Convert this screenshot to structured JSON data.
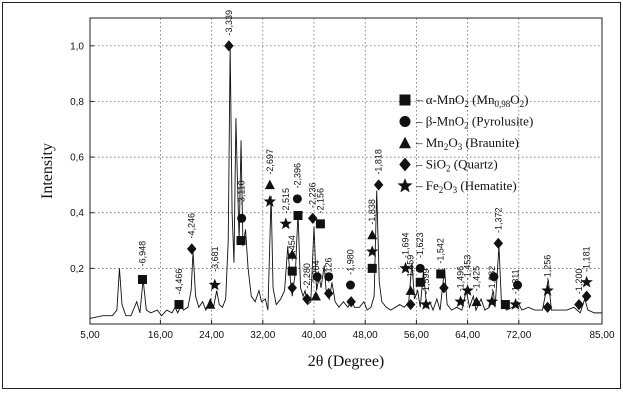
{
  "chart_data": {
    "type": "line",
    "title": "",
    "xlabel": "2θ (Degree)",
    "ylabel": "Intensity",
    "xlim": [
      5,
      85
    ],
    "ylim": [
      0,
      1.1
    ],
    "grid": true,
    "legend_position": "right",
    "x_ticks": [
      {
        "value": 5,
        "label": "5,00"
      },
      {
        "value": 16,
        "label": "16,00"
      },
      {
        "value": 24,
        "label": "24,00"
      },
      {
        "value": 32,
        "label": "32,00"
      },
      {
        "value": 40,
        "label": "40,00"
      },
      {
        "value": 48,
        "label": "48,00"
      },
      {
        "value": 56,
        "label": "56,00"
      },
      {
        "value": 64,
        "label": "64,00"
      },
      {
        "value": 72,
        "label": "72,00"
      },
      {
        "value": 85,
        "label": "85,00"
      }
    ],
    "y_ticks": [
      {
        "value": 0.2,
        "label": "0,2"
      },
      {
        "value": 0.4,
        "label": "0,4"
      },
      {
        "value": 0.6,
        "label": "0,6"
      },
      {
        "value": 0.8,
        "label": "0,8"
      },
      {
        "value": 1.0,
        "label": "1,0"
      }
    ],
    "legend": [
      {
        "marker": "square",
        "prefix": "– α-MnO",
        "sub1": "2",
        "mid": " (Mn",
        "sub2": "0,98",
        "mid2": "O",
        "sub3": "2",
        "suffix": ")"
      },
      {
        "marker": "circle",
        "prefix": "– β-MnO",
        "sub1": "2",
        "mid": " (Pyrolusite)",
        "sub2": "",
        "mid2": "",
        "sub3": "",
        "suffix": ""
      },
      {
        "marker": "triangle",
        "prefix": "– Mn",
        "sub1": "2",
        "mid": "O",
        "sub2": "3",
        "mid2": " (Braunite)",
        "sub3": "",
        "suffix": ""
      },
      {
        "marker": "diamond",
        "prefix": "– SiO",
        "sub1": "2",
        "mid": "  (Quartz)",
        "sub2": "",
        "mid2": "",
        "sub3": "",
        "suffix": ""
      },
      {
        "marker": "star",
        "prefix": "– Fe",
        "sub1": "2",
        "mid": "O",
        "sub2": "3",
        "mid2": " (Hematite)",
        "sub3": "",
        "suffix": ""
      }
    ],
    "pattern": [
      [
        5,
        0.02
      ],
      [
        7,
        0.03
      ],
      [
        8.5,
        0.03
      ],
      [
        9.2,
        0.05
      ],
      [
        9.6,
        0.2
      ],
      [
        10.0,
        0.07
      ],
      [
        10.6,
        0.03
      ],
      [
        11.4,
        0.03
      ],
      [
        12.3,
        0.08
      ],
      [
        12.8,
        0.04
      ],
      [
        13.3,
        0.16
      ],
      [
        13.8,
        0.05
      ],
      [
        14.5,
        0.04
      ],
      [
        15.5,
        0.05
      ],
      [
        16.2,
        0.03
      ],
      [
        17.0,
        0.05
      ],
      [
        17.8,
        0.04
      ],
      [
        18.3,
        0.06
      ],
      [
        18.7,
        0.04
      ],
      [
        19.3,
        0.07
      ],
      [
        19.6,
        0.05
      ],
      [
        20.3,
        0.06
      ],
      [
        20.8,
        0.12
      ],
      [
        21.1,
        0.26
      ],
      [
        21.5,
        0.1
      ],
      [
        22.0,
        0.06
      ],
      [
        22.6,
        0.08
      ],
      [
        23.1,
        0.05
      ],
      [
        23.8,
        0.09
      ],
      [
        24.3,
        0.06
      ],
      [
        24.8,
        0.12
      ],
      [
        25.2,
        0.07
      ],
      [
        25.7,
        0.06
      ],
      [
        26.2,
        0.09
      ],
      [
        26.6,
        0.3
      ],
      [
        26.9,
        1.0
      ],
      [
        27.2,
        0.4
      ],
      [
        27.5,
        0.22
      ],
      [
        27.8,
        0.74
      ],
      [
        28.0,
        0.55
      ],
      [
        28.3,
        0.3
      ],
      [
        28.6,
        0.66
      ],
      [
        28.9,
        0.28
      ],
      [
        29.3,
        0.34
      ],
      [
        29.7,
        0.2
      ],
      [
        30.2,
        0.1
      ],
      [
        30.8,
        0.08
      ],
      [
        31.4,
        0.12
      ],
      [
        31.8,
        0.08
      ],
      [
        32.4,
        0.09
      ],
      [
        32.8,
        0.05
      ],
      [
        33.3,
        0.46
      ],
      [
        33.6,
        0.13
      ],
      [
        34.1,
        0.07
      ],
      [
        34.8,
        0.09
      ],
      [
        35.4,
        0.12
      ],
      [
        35.9,
        0.28
      ],
      [
        36.3,
        0.16
      ],
      [
        36.6,
        0.1
      ],
      [
        37.1,
        0.19
      ],
      [
        37.5,
        0.4
      ],
      [
        37.9,
        0.13
      ],
      [
        38.3,
        0.1
      ],
      [
        38.6,
        0.12
      ],
      [
        39.0,
        0.07
      ],
      [
        39.5,
        0.08
      ],
      [
        40.0,
        0.35
      ],
      [
        40.4,
        0.12
      ],
      [
        40.8,
        0.17
      ],
      [
        41.1,
        0.13
      ],
      [
        41.6,
        0.21
      ],
      [
        41.9,
        0.12
      ],
      [
        42.4,
        0.09
      ],
      [
        42.8,
        0.15
      ],
      [
        43.3,
        0.08
      ],
      [
        43.9,
        0.06
      ],
      [
        44.6,
        0.08
      ],
      [
        45.3,
        0.06
      ],
      [
        45.9,
        0.09
      ],
      [
        46.3,
        0.06
      ],
      [
        47.1,
        0.06
      ],
      [
        47.8,
        0.08
      ],
      [
        48.3,
        0.05
      ],
      [
        48.9,
        0.06
      ],
      [
        49.4,
        0.1
      ],
      [
        49.8,
        0.48
      ],
      [
        50.2,
        0.15
      ],
      [
        50.6,
        0.08
      ],
      [
        51.3,
        0.06
      ],
      [
        52.0,
        0.05
      ],
      [
        52.7,
        0.06
      ],
      [
        53.4,
        0.07
      ],
      [
        54.1,
        0.06
      ],
      [
        54.8,
        0.08
      ],
      [
        55.3,
        0.22
      ],
      [
        55.7,
        0.09
      ],
      [
        56.2,
        0.12
      ],
      [
        56.6,
        0.06
      ],
      [
        57.1,
        0.19
      ],
      [
        57.6,
        0.06
      ],
      [
        58.1,
        0.08
      ],
      [
        58.6,
        0.05
      ],
      [
        59.2,
        0.09
      ],
      [
        59.7,
        0.05
      ],
      [
        60.4,
        0.2
      ],
      [
        60.8,
        0.07
      ],
      [
        61.5,
        0.05
      ],
      [
        62.3,
        0.06
      ],
      [
        63.1,
        0.05
      ],
      [
        63.8,
        0.12
      ],
      [
        64.3,
        0.06
      ],
      [
        64.9,
        0.1
      ],
      [
        65.3,
        0.05
      ],
      [
        66.1,
        0.09
      ],
      [
        66.7,
        0.05
      ],
      [
        67.4,
        0.06
      ],
      [
        68.0,
        0.12
      ],
      [
        68.3,
        0.06
      ],
      [
        68.9,
        0.28
      ],
      [
        69.3,
        0.07
      ],
      [
        70.1,
        0.05
      ],
      [
        71.0,
        0.06
      ],
      [
        71.8,
        0.08
      ],
      [
        72.5,
        0.05
      ],
      [
        73.5,
        0.06
      ],
      [
        74.5,
        0.05
      ],
      [
        75.7,
        0.05
      ],
      [
        76.6,
        0.16
      ],
      [
        77.1,
        0.05
      ],
      [
        78.3,
        0.05
      ],
      [
        79.5,
        0.05
      ],
      [
        80.6,
        0.06
      ],
      [
        81.6,
        0.04
      ],
      [
        82.3,
        0.09
      ],
      [
        82.8,
        0.05
      ],
      [
        83.8,
        0.04
      ],
      [
        85,
        0.04
      ]
    ],
    "annotations": [
      {
        "x": 13.2,
        "y": 0.16,
        "marker": "square",
        "label": "6,948",
        "ly": 0.2
      },
      {
        "x": 18.9,
        "y": 0.07,
        "marker": "square",
        "label": "4,466",
        "ly": 0.1
      },
      {
        "x": 20.9,
        "y": 0.27,
        "marker": "diamond",
        "label": "4,246",
        "ly": 0.3
      },
      {
        "x": 23.8,
        "y": 0.07,
        "marker": "triangle",
        "label": "",
        "ly": 0.1
      },
      {
        "x": 24.5,
        "y": 0.14,
        "marker": "star",
        "label": "3,681",
        "ly": 0.18
      },
      {
        "x": 26.7,
        "y": 1.0,
        "marker": "diamond",
        "label": "3,339",
        "ly": 1.03
      },
      {
        "x": 28.7,
        "y": 0.38,
        "marker": "circle",
        "label": "3,110",
        "ly": 0.42
      },
      {
        "x": 28.6,
        "y": 0.3,
        "marker": "square",
        "label": "",
        "ly": 0.3
      },
      {
        "x": 33.1,
        "y": 0.5,
        "marker": "triangle",
        "label": "2,697",
        "ly": 0.53
      },
      {
        "x": 33.1,
        "y": 0.44,
        "marker": "star",
        "label": "",
        "ly": 0.44
      },
      {
        "x": 35.6,
        "y": 0.36,
        "marker": "star",
        "label": "2,515",
        "ly": 0.39
      },
      {
        "x": 36.6,
        "y": 0.19,
        "marker": "square",
        "label": "2,454",
        "ly": 0.22
      },
      {
        "x": 36.6,
        "y": 0.25,
        "marker": "triangle",
        "label": "",
        "ly": 0.25
      },
      {
        "x": 36.6,
        "y": 0.13,
        "marker": "diamond",
        "label": "",
        "ly": 0.13
      },
      {
        "x": 37.4,
        "y": 0.45,
        "marker": "circle",
        "label": "2,396",
        "ly": 0.48
      },
      {
        "x": 37.5,
        "y": 0.39,
        "marker": "square",
        "label": "",
        "ly": 0.39
      },
      {
        "x": 38.9,
        "y": 0.09,
        "marker": "diamond",
        "label": "2,280",
        "ly": 0.12
      },
      {
        "x": 39.8,
        "y": 0.38,
        "marker": "diamond",
        "label": "2,236",
        "ly": 0.41
      },
      {
        "x": 41.0,
        "y": 0.36,
        "marker": "square",
        "label": "2,156",
        "ly": 0.39
      },
      {
        "x": 40.3,
        "y": 0.1,
        "marker": "triangle",
        "label": "2,204",
        "ly": 0.13
      },
      {
        "x": 40.5,
        "y": 0.17,
        "marker": "circle",
        "label": "",
        "ly": 0.17
      },
      {
        "x": 42.3,
        "y": 0.17,
        "marker": "circle",
        "label": "",
        "ly": 0.17
      },
      {
        "x": 42.3,
        "y": 0.11,
        "marker": "diamond",
        "label": "2,126",
        "ly": 0.14
      },
      {
        "x": 45.7,
        "y": 0.14,
        "marker": "circle",
        "label": "1,980",
        "ly": 0.17
      },
      {
        "x": 45.8,
        "y": 0.08,
        "marker": "diamond",
        "label": "",
        "ly": 0.08
      },
      {
        "x": 49.1,
        "y": 0.32,
        "marker": "triangle",
        "label": "1,838",
        "ly": 0.35
      },
      {
        "x": 49.1,
        "y": 0.26,
        "marker": "star",
        "label": "",
        "ly": 0.26
      },
      {
        "x": 49.1,
        "y": 0.2,
        "marker": "square",
        "label": "",
        "ly": 0.2
      },
      {
        "x": 50.1,
        "y": 0.5,
        "marker": "diamond",
        "label": "1,818",
        "ly": 0.53
      },
      {
        "x": 54.3,
        "y": 0.2,
        "marker": "star",
        "label": "1,694",
        "ly": 0.23
      },
      {
        "x": 55.1,
        "y": 0.12,
        "marker": "triangle",
        "label": "1,659",
        "ly": 0.15
      },
      {
        "x": 55.1,
        "y": 0.07,
        "marker": "diamond",
        "label": "",
        "ly": 0.07
      },
      {
        "x": 56.6,
        "y": 0.2,
        "marker": "circle",
        "label": "1,623",
        "ly": 0.23
      },
      {
        "x": 56.6,
        "y": 0.15,
        "marker": "square",
        "label": "",
        "ly": 0.15
      },
      {
        "x": 57.5,
        "y": 0.07,
        "marker": "star",
        "label": "1,599",
        "ly": 0.1
      },
      {
        "x": 59.8,
        "y": 0.18,
        "marker": "square",
        "label": "1,542",
        "ly": 0.21
      },
      {
        "x": 60.3,
        "y": 0.13,
        "marker": "diamond",
        "label": "",
        "ly": 0.13
      },
      {
        "x": 62.9,
        "y": 0.08,
        "marker": "star",
        "label": "1,496",
        "ly": 0.11
      },
      {
        "x": 64.0,
        "y": 0.12,
        "marker": "star",
        "label": "1,453",
        "ly": 0.15
      },
      {
        "x": 65.4,
        "y": 0.08,
        "marker": "triangle",
        "label": "1,425",
        "ly": 0.11
      },
      {
        "x": 67.8,
        "y": 0.08,
        "marker": "star",
        "label": "1,382",
        "ly": 0.11
      },
      {
        "x": 68.8,
        "y": 0.29,
        "marker": "diamond",
        "label": "1,372",
        "ly": 0.32
      },
      {
        "x": 68.1,
        "y": 0.17,
        "marker": "circle",
        "label": "",
        "ly": 0.17
      },
      {
        "x": 69.9,
        "y": 0.07,
        "marker": "square",
        "label": "",
        "ly": 0.07
      },
      {
        "x": 71.5,
        "y": 0.07,
        "marker": "star",
        "label": "1,311",
        "ly": 0.1
      },
      {
        "x": 71.8,
        "y": 0.14,
        "marker": "circle",
        "label": "",
        "ly": 0.14
      },
      {
        "x": 76.5,
        "y": 0.12,
        "marker": "star",
        "label": "1,256",
        "ly": 0.15
      },
      {
        "x": 76.5,
        "y": 0.06,
        "marker": "diamond",
        "label": "",
        "ly": 0.06
      },
      {
        "x": 81.4,
        "y": 0.07,
        "marker": "diamond",
        "label": "1,200",
        "ly": 0.1
      },
      {
        "x": 82.6,
        "y": 0.15,
        "marker": "star",
        "label": "1,181",
        "ly": 0.18
      },
      {
        "x": 82.6,
        "y": 0.1,
        "marker": "diamond",
        "label": "",
        "ly": 0.1
      }
    ]
  }
}
